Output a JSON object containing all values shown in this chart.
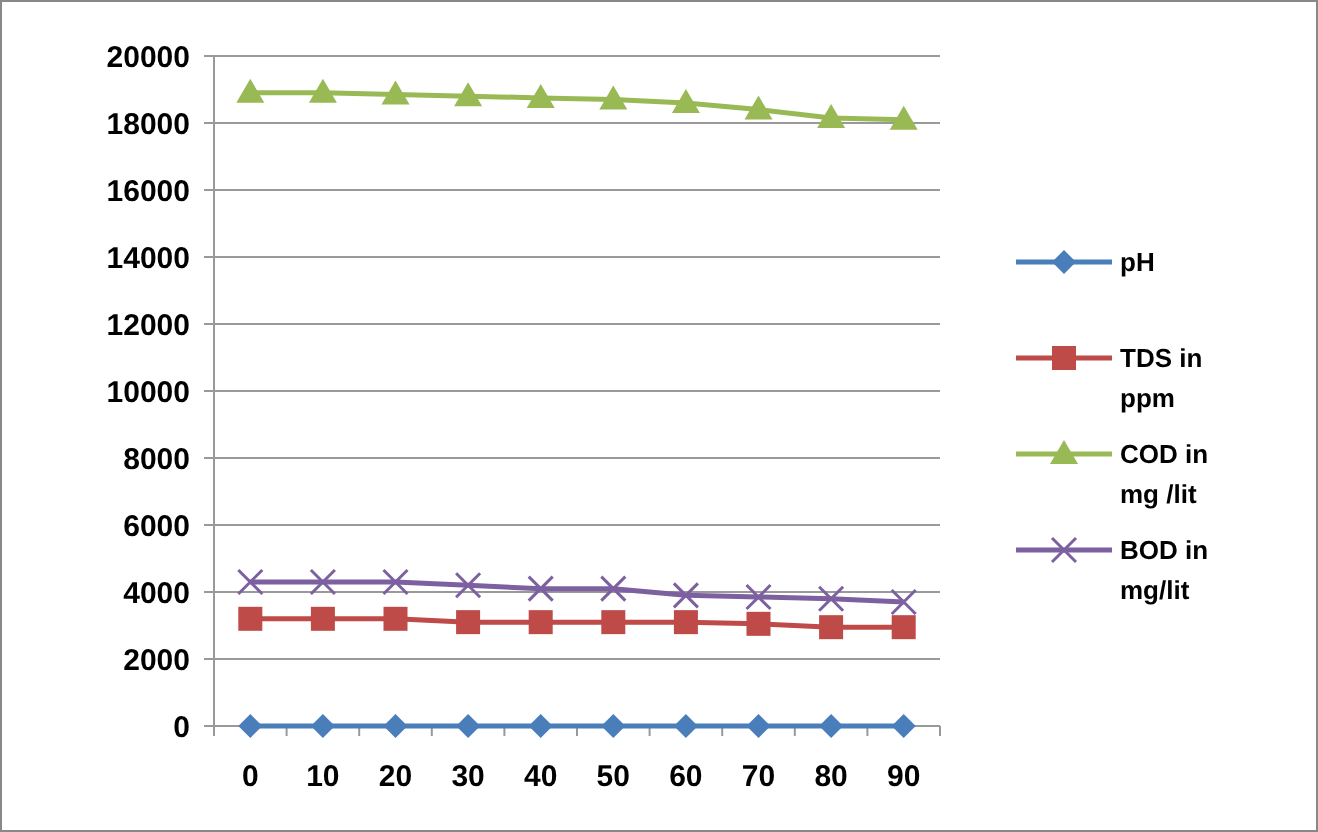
{
  "chart_data": {
    "type": "line",
    "categories": [
      "0",
      "10",
      "20",
      "30",
      "40",
      "50",
      "60",
      "70",
      "80",
      "90"
    ],
    "series": [
      {
        "name": "pH",
        "color": "#4a7ebb",
        "marker": "diamond",
        "values": [
          0,
          0,
          0,
          0,
          0,
          0,
          0,
          0,
          0,
          0
        ]
      },
      {
        "name": "TDS in ppm",
        "color": "#be4b48",
        "marker": "square",
        "values": [
          3200,
          3200,
          3200,
          3100,
          3100,
          3100,
          3100,
          3050,
          2950,
          2950
        ]
      },
      {
        "name": "COD in mg /lit",
        "color": "#98b954",
        "marker": "triangle",
        "values": [
          18900,
          18900,
          18850,
          18800,
          18750,
          18700,
          18600,
          18400,
          18150,
          18100
        ]
      },
      {
        "name": "BOD in mg/lit",
        "color": "#7d60a0",
        "marker": "cross",
        "values": [
          4300,
          4300,
          4300,
          4200,
          4100,
          4100,
          3900,
          3850,
          3800,
          3700
        ]
      }
    ],
    "ylim": [
      0,
      20000
    ],
    "yticks": [
      0,
      2000,
      4000,
      6000,
      8000,
      10000,
      12000,
      14000,
      16000,
      18000,
      20000
    ],
    "grid": "y",
    "legend": "right"
  }
}
